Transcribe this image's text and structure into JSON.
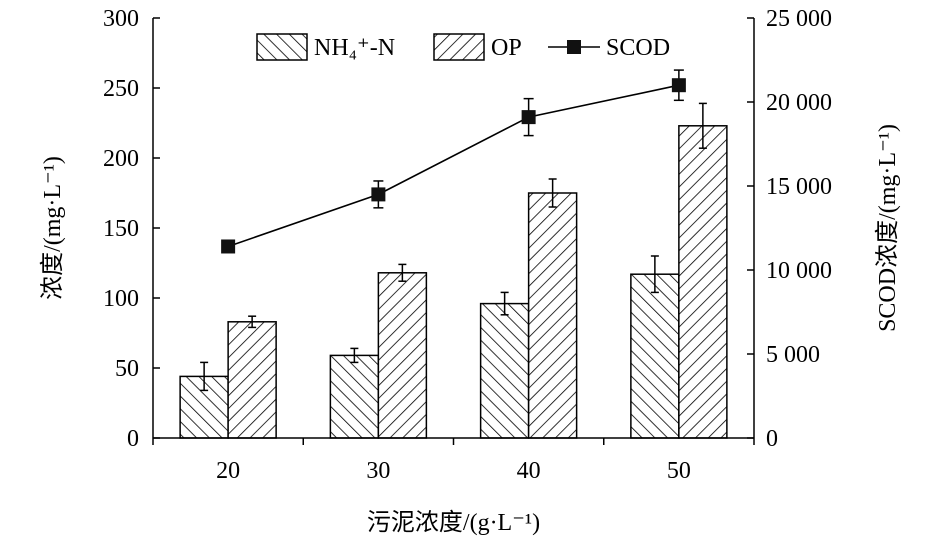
{
  "chart_data": {
    "type": "bar",
    "categories": [
      "20",
      "30",
      "40",
      "50"
    ],
    "xlabel": "污泥浓度/(g·L⁻¹)",
    "ylabel_left": "浓度/(mg·L⁻¹)",
    "ylabel_right": "SCOD浓度/(mg·L⁻¹)",
    "ylim_left": [
      0,
      300
    ],
    "ylim_right": [
      0,
      25000
    ],
    "yticks_left": [
      "0",
      "50",
      "100",
      "150",
      "200",
      "250",
      "300"
    ],
    "yticks_right": [
      "0",
      "5 000",
      "10 000",
      "15 000",
      "20 000",
      "25 000"
    ],
    "grid": false,
    "legend_position": "top",
    "series": [
      {
        "name": "NH₄⁺-N",
        "axis": "left",
        "kind": "bar",
        "pattern": "backslash-hatch",
        "values": [
          44,
          59,
          96,
          117
        ],
        "errors": [
          10,
          5,
          8,
          13
        ]
      },
      {
        "name": "OP",
        "axis": "left",
        "kind": "bar",
        "pattern": "slash-hatch",
        "values": [
          83,
          118,
          175,
          223
        ],
        "errors": [
          4,
          6,
          10,
          16
        ]
      },
      {
        "name": "SCOD",
        "axis": "right",
        "kind": "line",
        "marker": "square",
        "values": [
          11400,
          14500,
          19100,
          21000
        ],
        "errors": [
          300,
          800,
          1100,
          900
        ]
      }
    ]
  }
}
